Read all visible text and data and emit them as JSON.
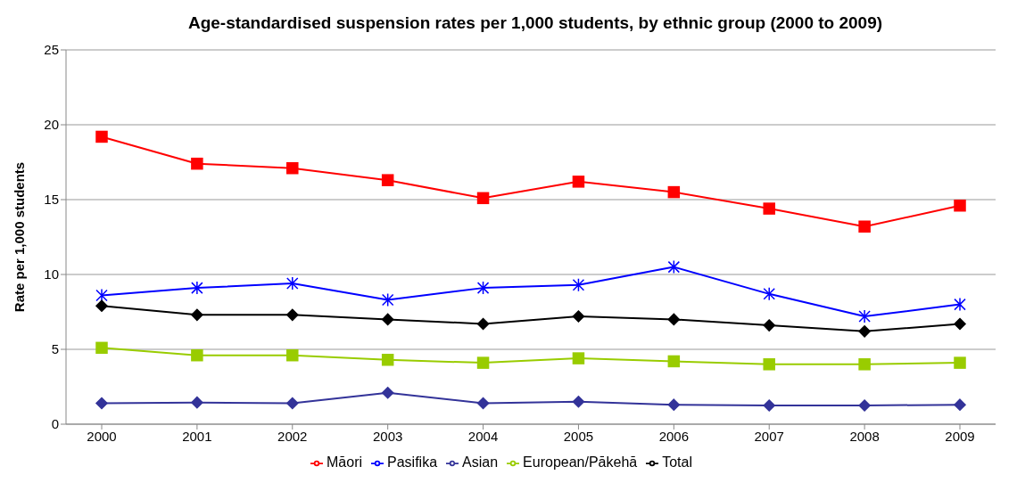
{
  "chart_data": {
    "type": "line",
    "title": "Age-standardised suspension rates per 1,000 students, by ethnic group (2000 to 2009)",
    "ylabel": "Rate per 1,000 students",
    "categories": [
      "2000",
      "2001",
      "2002",
      "2003",
      "2004",
      "2005",
      "2006",
      "2007",
      "2008",
      "2009"
    ],
    "ylim": [
      0,
      25
    ],
    "yticks": [
      0,
      5,
      10,
      15,
      20,
      25
    ],
    "grid": "y",
    "legend": "bottom",
    "line_style": "solid",
    "series": [
      {
        "name": "Māori",
        "color": "#ff0000",
        "marker": "square",
        "values": [
          19.2,
          17.4,
          17.1,
          16.3,
          15.1,
          16.2,
          15.5,
          14.4,
          13.2,
          14.6
        ]
      },
      {
        "name": "Pasifika",
        "color": "#0000ff",
        "marker": "cross",
        "values": [
          8.6,
          9.1,
          9.4,
          8.3,
          9.1,
          9.3,
          10.5,
          8.7,
          7.2,
          8.0
        ]
      },
      {
        "name": "Asian",
        "color": "#333399",
        "marker": "diamond",
        "values": [
          1.4,
          1.45,
          1.4,
          2.1,
          1.4,
          1.5,
          1.3,
          1.25,
          1.25,
          1.3
        ]
      },
      {
        "name": "European/Pākehā",
        "color": "#99cc00",
        "marker": "square",
        "values": [
          5.1,
          4.6,
          4.6,
          4.3,
          4.1,
          4.4,
          4.2,
          4.0,
          4.0,
          4.1
        ]
      },
      {
        "name": "Total",
        "color": "#000000",
        "marker": "diamond",
        "values": [
          7.9,
          7.3,
          7.3,
          7.0,
          6.7,
          7.2,
          7.0,
          6.6,
          6.2,
          6.7
        ]
      }
    ]
  }
}
